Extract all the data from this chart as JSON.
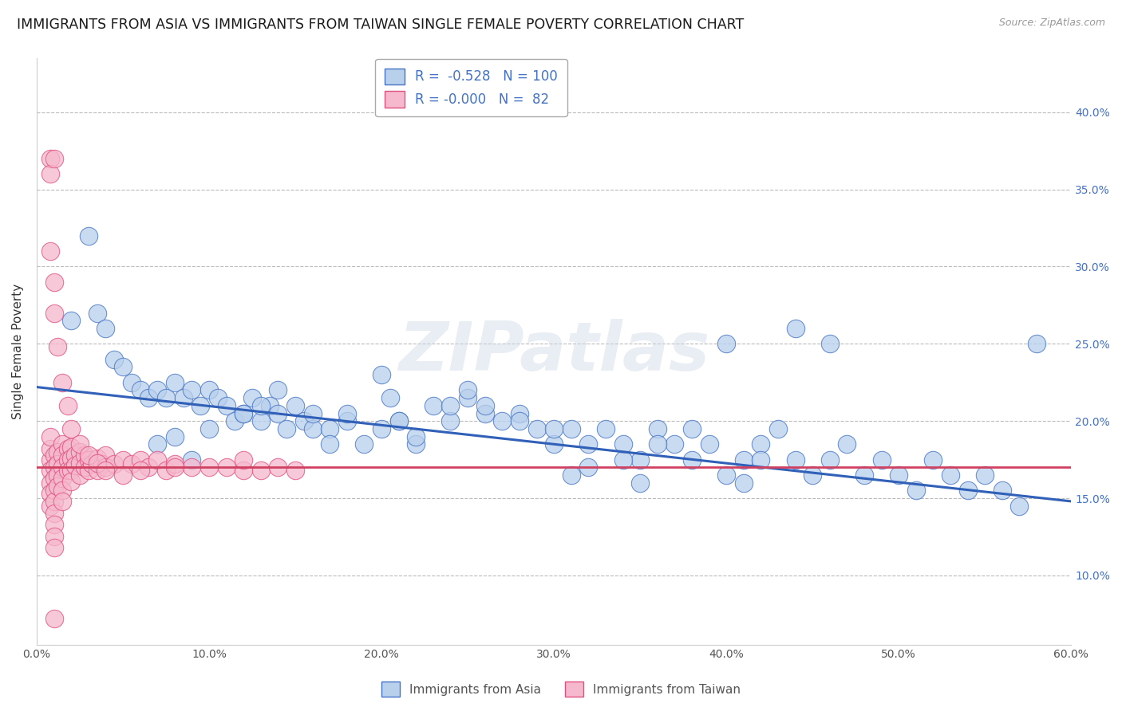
{
  "title": "IMMIGRANTS FROM ASIA VS IMMIGRANTS FROM TAIWAN SINGLE FEMALE POVERTY CORRELATION CHART",
  "source": "Source: ZipAtlas.com",
  "ylabel": "Single Female Poverty",
  "legend_labels": [
    "Immigrants from Asia",
    "Immigrants from Taiwan"
  ],
  "blue_legend": "R =  -0.528   N = 100",
  "pink_legend": "R = -0.000   N =  82",
  "blue_face": "#b8d0ec",
  "pink_face": "#f5b8cc",
  "blue_edge": "#4472c4",
  "pink_edge": "#e05080",
  "blue_line": "#3060b8",
  "pink_line": "#d04060",
  "xlim": [
    0.0,
    0.6
  ],
  "ylim": [
    0.055,
    0.435
  ],
  "xticks": [
    0.0,
    0.1,
    0.2,
    0.3,
    0.4,
    0.5,
    0.6
  ],
  "yticks": [
    0.1,
    0.15,
    0.2,
    0.25,
    0.3,
    0.35,
    0.4
  ],
  "xtick_labels": [
    "0.0%",
    "10.0%",
    "20.0%",
    "30.0%",
    "40.0%",
    "50.0%",
    "60.0%"
  ],
  "ytick_labels_right": [
    "10.0%",
    "15.0%",
    "20.0%",
    "25.0%",
    "30.0%",
    "35.0%",
    "40.0%"
  ],
  "background_color": "#ffffff",
  "grid_color": "#bbbbbb",
  "watermark": "ZIPatlas",
  "title_fontsize": 12.5,
  "tick_fontsize": 10,
  "ylabel_fontsize": 11,
  "blue_line_x": [
    0.0,
    0.6
  ],
  "blue_line_y": [
    0.222,
    0.148
  ],
  "pink_line_y": 0.17,
  "blue_scatter_x": [
    0.02,
    0.03,
    0.035,
    0.04,
    0.045,
    0.05,
    0.055,
    0.06,
    0.065,
    0.07,
    0.075,
    0.08,
    0.085,
    0.09,
    0.095,
    0.1,
    0.105,
    0.11,
    0.115,
    0.12,
    0.125,
    0.13,
    0.135,
    0.14,
    0.145,
    0.15,
    0.155,
    0.16,
    0.17,
    0.18,
    0.19,
    0.2,
    0.205,
    0.21,
    0.22,
    0.23,
    0.24,
    0.25,
    0.26,
    0.27,
    0.28,
    0.29,
    0.3,
    0.31,
    0.32,
    0.33,
    0.34,
    0.35,
    0.36,
    0.37,
    0.38,
    0.39,
    0.4,
    0.41,
    0.42,
    0.43,
    0.44,
    0.45,
    0.46,
    0.47,
    0.48,
    0.49,
    0.5,
    0.51,
    0.52,
    0.53,
    0.54,
    0.55,
    0.56,
    0.57,
    0.1,
    0.13,
    0.16,
    0.2,
    0.24,
    0.28,
    0.32,
    0.36,
    0.4,
    0.44,
    0.08,
    0.12,
    0.18,
    0.22,
    0.26,
    0.3,
    0.34,
    0.38,
    0.42,
    0.46,
    0.07,
    0.09,
    0.14,
    0.17,
    0.21,
    0.25,
    0.31,
    0.35,
    0.41,
    0.58
  ],
  "blue_scatter_y": [
    0.265,
    0.32,
    0.27,
    0.26,
    0.24,
    0.235,
    0.225,
    0.22,
    0.215,
    0.22,
    0.215,
    0.225,
    0.215,
    0.22,
    0.21,
    0.22,
    0.215,
    0.21,
    0.2,
    0.205,
    0.215,
    0.2,
    0.21,
    0.205,
    0.195,
    0.21,
    0.2,
    0.195,
    0.195,
    0.2,
    0.185,
    0.23,
    0.215,
    0.2,
    0.185,
    0.21,
    0.2,
    0.215,
    0.205,
    0.2,
    0.205,
    0.195,
    0.185,
    0.195,
    0.185,
    0.195,
    0.185,
    0.175,
    0.195,
    0.185,
    0.175,
    0.185,
    0.165,
    0.175,
    0.185,
    0.195,
    0.175,
    0.165,
    0.175,
    0.185,
    0.165,
    0.175,
    0.165,
    0.155,
    0.175,
    0.165,
    0.155,
    0.165,
    0.155,
    0.145,
    0.195,
    0.21,
    0.205,
    0.195,
    0.21,
    0.2,
    0.17,
    0.185,
    0.25,
    0.26,
    0.19,
    0.205,
    0.205,
    0.19,
    0.21,
    0.195,
    0.175,
    0.195,
    0.175,
    0.25,
    0.185,
    0.175,
    0.22,
    0.185,
    0.2,
    0.22,
    0.165,
    0.16,
    0.16,
    0.25
  ],
  "pink_scatter_x": [
    0.008,
    0.008,
    0.008,
    0.008,
    0.008,
    0.008,
    0.008,
    0.01,
    0.01,
    0.01,
    0.01,
    0.01,
    0.01,
    0.01,
    0.01,
    0.01,
    0.012,
    0.012,
    0.012,
    0.012,
    0.015,
    0.015,
    0.015,
    0.015,
    0.015,
    0.015,
    0.018,
    0.018,
    0.018,
    0.02,
    0.02,
    0.02,
    0.02,
    0.022,
    0.022,
    0.025,
    0.025,
    0.025,
    0.028,
    0.028,
    0.03,
    0.03,
    0.032,
    0.035,
    0.035,
    0.038,
    0.04,
    0.04,
    0.045,
    0.05,
    0.055,
    0.06,
    0.065,
    0.07,
    0.075,
    0.08,
    0.09,
    0.1,
    0.11,
    0.12,
    0.13,
    0.14,
    0.15,
    0.008,
    0.008,
    0.008,
    0.01,
    0.01,
    0.012,
    0.015,
    0.018,
    0.02,
    0.025,
    0.03,
    0.035,
    0.04,
    0.05,
    0.06,
    0.08,
    0.12,
    0.01,
    0.01
  ],
  "pink_scatter_y": [
    0.175,
    0.182,
    0.19,
    0.168,
    0.16,
    0.153,
    0.145,
    0.178,
    0.17,
    0.163,
    0.155,
    0.148,
    0.14,
    0.133,
    0.125,
    0.118,
    0.18,
    0.172,
    0.165,
    0.158,
    0.185,
    0.178,
    0.17,
    0.163,
    0.155,
    0.148,
    0.182,
    0.175,
    0.168,
    0.183,
    0.176,
    0.168,
    0.161,
    0.178,
    0.171,
    0.18,
    0.173,
    0.165,
    0.178,
    0.17,
    0.175,
    0.168,
    0.172,
    0.176,
    0.168,
    0.172,
    0.178,
    0.17,
    0.172,
    0.175,
    0.172,
    0.175,
    0.17,
    0.175,
    0.168,
    0.172,
    0.17,
    0.17,
    0.17,
    0.168,
    0.168,
    0.17,
    0.168,
    0.37,
    0.36,
    0.31,
    0.29,
    0.27,
    0.248,
    0.225,
    0.21,
    0.195,
    0.185,
    0.178,
    0.173,
    0.168,
    0.165,
    0.168,
    0.17,
    0.175,
    0.37,
    0.072
  ]
}
